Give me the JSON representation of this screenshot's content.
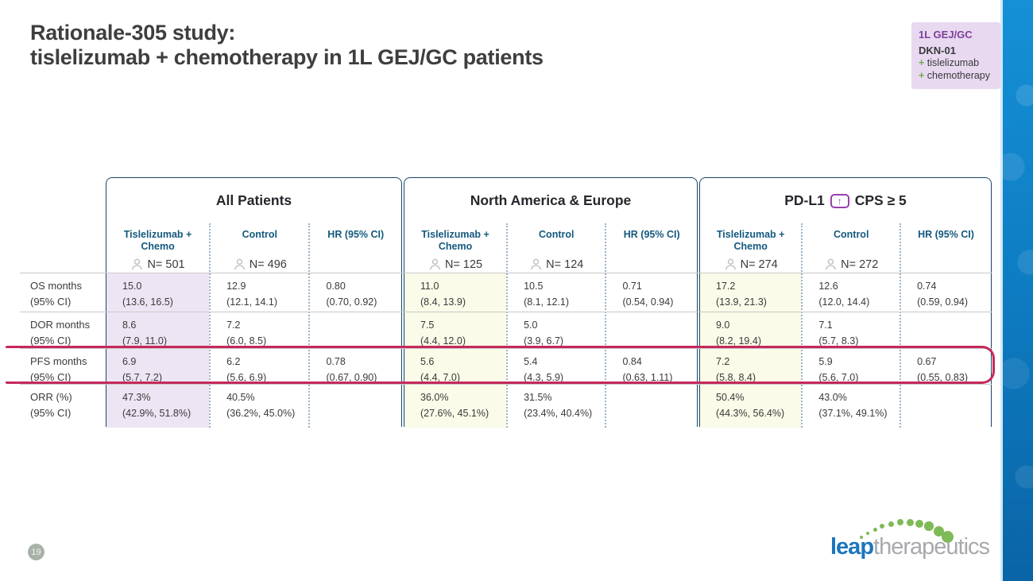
{
  "title": {
    "line1": "Rationale-305 study:",
    "line2": "tislelizumab + chemotherapy in 1L GEJ/GC patients"
  },
  "badge": {
    "indication": "1L GEJ/GC",
    "program": "DKN-01",
    "plus": "+",
    "item1": "tislelizumab",
    "item2": "chemotherapy"
  },
  "table": {
    "groups": [
      {
        "title": "All Patients",
        "cols": [
          {
            "header": "Tislelizumab + Chemo",
            "n": "N= 501"
          },
          {
            "header": "Control",
            "n": "N= 496"
          },
          {
            "header": "HR (95% CI)"
          }
        ]
      },
      {
        "title": "North America & Europe",
        "cols": [
          {
            "header": "Tislelizumab + Chemo",
            "n": "N= 125"
          },
          {
            "header": "Control",
            "n": "N= 124"
          },
          {
            "header": "HR (95% CI)"
          }
        ]
      },
      {
        "title_prefix": "PD-L1",
        "title_icon": "↑",
        "title_suffix": "CPS ≥ 5",
        "cols": [
          {
            "header": "Tislelizumab + Chemo",
            "n": "N= 274"
          },
          {
            "header": "Control",
            "n": "N= 272"
          },
          {
            "header": "HR (95% CI)"
          }
        ]
      }
    ],
    "rows": [
      {
        "label": "OS months",
        "sub": "(95% CI)",
        "cells": [
          {
            "v": "15.0",
            "ci": "(13.6, 16.5)"
          },
          {
            "v": "12.9",
            "ci": "(12.1, 14.1)"
          },
          {
            "v": "0.80",
            "ci": "(0.70, 0.92)"
          },
          {
            "v": "11.0",
            "ci": "(8.4, 13.9)"
          },
          {
            "v": "10.5",
            "ci": "(8.1, 12.1)"
          },
          {
            "v": "0.71",
            "ci": "(0.54, 0.94)"
          },
          {
            "v": "17.2",
            "ci": "(13.9, 21.3)"
          },
          {
            "v": "12.6",
            "ci": "(12.0, 14.4)"
          },
          {
            "v": "0.74",
            "ci": "(0.59, 0.94)"
          }
        ]
      },
      {
        "label": "DOR months",
        "sub": "(95% CI)",
        "cells": [
          {
            "v": "8.6",
            "ci": "(7.9, 11.0)"
          },
          {
            "v": "7.2",
            "ci": "(6.0, 8.5)"
          },
          {},
          {
            "v": "7.5",
            "ci": "(4.4, 12.0)"
          },
          {
            "v": "5.0",
            "ci": "(3.9, 6.7)"
          },
          {},
          {
            "v": "9.0",
            "ci": "(8.2, 19.4)"
          },
          {
            "v": "7.1",
            "ci": "(5.7, 8.3)"
          },
          {}
        ]
      },
      {
        "label": "PFS months",
        "sub": "(95% CI)",
        "highlighted": true,
        "cells": [
          {
            "v": "6.9",
            "ci": "(5.7, 7.2)"
          },
          {
            "v": "6.2",
            "ci": "(5.6, 6.9)"
          },
          {
            "v": "0.78",
            "ci": "(0.67, 0.90)"
          },
          {
            "v": "5.6",
            "ci": "(4.4, 7.0)"
          },
          {
            "v": "5.4",
            "ci": "(4.3, 5.9)"
          },
          {
            "v": "0.84",
            "ci": "(0.63, 1.11)"
          },
          {
            "v": "7.2",
            "ci": "(5.8, 8.4)"
          },
          {
            "v": "5.9",
            "ci": "(5.6, 7.0)"
          },
          {
            "v": "0.67",
            "ci": "(0.55, 0.83)"
          }
        ]
      },
      {
        "label": "ORR (%)",
        "sub": "(95% CI)",
        "cells": [
          {
            "v": "47.3%",
            "ci": "(42.9%, 51.8%)"
          },
          {
            "v": "40.5%",
            "ci": "(36.2%, 45.0%)"
          },
          {},
          {
            "v": "36.0%",
            "ci": "(27.6%, 45.1%)"
          },
          {
            "v": "31.5%",
            "ci": "(23.4%, 40.4%)"
          },
          {},
          {
            "v": "50.4%",
            "ci": "(44.3%, 56.4%)"
          },
          {
            "v": "43.0%",
            "ci": "(37.1%, 49.1%)"
          },
          {}
        ]
      }
    ]
  },
  "footer": {
    "page_number": "19",
    "logo_leap": "leap",
    "logo_therapeutics": "therapeutics"
  },
  "colors": {
    "accent-red": "#c5295b",
    "navy": "#17466b",
    "teal-header": "#14597e",
    "lavender": "#eee5f4",
    "cream": "#fafbe8",
    "badge-bg": "#e8d9f1",
    "badge-purple": "#7d3f98",
    "plus-green": "#6fae4e",
    "logo-blue": "#1b76bc",
    "logo-gray": "#a7a9ac",
    "dot-green": "#7fba58"
  }
}
